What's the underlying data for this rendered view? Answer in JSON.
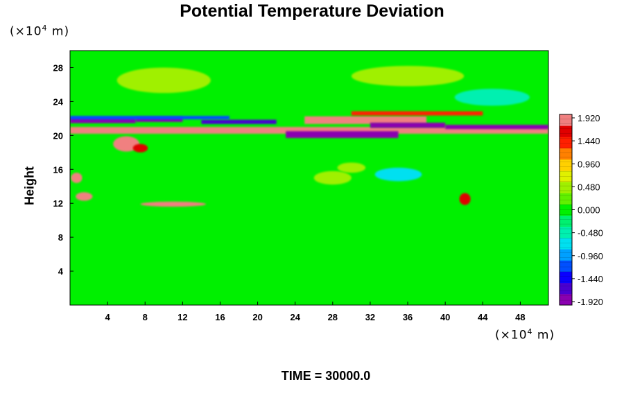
{
  "chart_data": {
    "type": "heatmap",
    "title": "Potential Temperature Deviation",
    "ylabel": "Height",
    "x_unit": "(×10",
    "x_unit_exp": "4",
    "x_unit_tail": " m)",
    "y_unit": "(×10",
    "y_unit_exp": "4",
    "y_unit_tail": " m)",
    "xlim": [
      0,
      51
    ],
    "ylim": [
      0,
      30
    ],
    "x_ticks": [
      4,
      8,
      12,
      16,
      20,
      24,
      28,
      32,
      36,
      40,
      44,
      48
    ],
    "y_ticks": [
      4,
      8,
      12,
      16,
      20,
      24,
      28
    ],
    "colorbar": {
      "min": -1.92,
      "max": 1.92,
      "tick_labels": [
        "1.920",
        "1.440",
        "0.960",
        "0.480",
        "0.000",
        "-0.480",
        "-0.960",
        "-1.440",
        "-1.920"
      ],
      "colors": [
        "#8a00b0",
        "#4a00d0",
        "#0a00ff",
        "#0050ff",
        "#00a0ff",
        "#00e0f0",
        "#00f0b0",
        "#00f070",
        "#00f000",
        "#60f000",
        "#a0f000",
        "#e0f000",
        "#ffd000",
        "#ff8000",
        "#ff2000",
        "#e00000",
        "#f08080"
      ]
    },
    "background_value": 0.0,
    "bands": [
      {
        "y": 20.6,
        "x0": 0,
        "x1": 51,
        "thickness": 0.8,
        "value": 1.92
      },
      {
        "y": 21.8,
        "x0": 0,
        "x1": 7,
        "thickness": 0.7,
        "value": -1.92
      },
      {
        "y": 21.9,
        "x0": 7,
        "x1": 12,
        "thickness": 0.6,
        "value": -1.7
      },
      {
        "y": 21.6,
        "x0": 14,
        "x1": 22,
        "thickness": 0.5,
        "value": -1.6
      },
      {
        "y": 20.1,
        "x0": 23,
        "x1": 35,
        "thickness": 0.8,
        "value": -1.92
      },
      {
        "y": 21.8,
        "x0": 25,
        "x1": 38,
        "thickness": 0.9,
        "value": 1.92
      },
      {
        "y": 21.2,
        "x0": 32,
        "x1": 40,
        "thickness": 0.6,
        "value": -1.92
      },
      {
        "y": 22.6,
        "x0": 30,
        "x1": 44,
        "thickness": 0.5,
        "value": 1.44
      },
      {
        "y": 22.1,
        "x0": 0,
        "x1": 17,
        "thickness": 0.4,
        "value": -1.2
      },
      {
        "y": 21.0,
        "x0": 40,
        "x1": 51,
        "thickness": 0.5,
        "value": -1.92
      }
    ],
    "blobs": [
      {
        "x": 6.0,
        "y": 19.0,
        "rx": 1.4,
        "ry": 0.9,
        "value": 1.92
      },
      {
        "x": 7.5,
        "y": 18.5,
        "rx": 0.8,
        "ry": 0.5,
        "value": 1.6
      },
      {
        "x": 0.7,
        "y": 15.0,
        "rx": 0.6,
        "ry": 0.6,
        "value": 1.7
      },
      {
        "x": 1.5,
        "y": 12.8,
        "rx": 0.9,
        "ry": 0.5,
        "value": 1.92
      },
      {
        "x": 11.0,
        "y": 11.9,
        "rx": 3.5,
        "ry": 0.3,
        "value": 1.7
      },
      {
        "x": 42.1,
        "y": 12.5,
        "rx": 0.6,
        "ry": 0.7,
        "value": 1.5
      },
      {
        "x": 28.0,
        "y": 15.0,
        "rx": 2.0,
        "ry": 0.8,
        "value": 0.5
      },
      {
        "x": 35.0,
        "y": 15.4,
        "rx": 2.5,
        "ry": 0.8,
        "value": -0.7
      },
      {
        "x": 30.0,
        "y": 16.2,
        "rx": 1.5,
        "ry": 0.6,
        "value": 0.4
      },
      {
        "x": 10.0,
        "y": 26.5,
        "rx": 5.0,
        "ry": 1.5,
        "value": 0.4
      },
      {
        "x": 36.0,
        "y": 27.0,
        "rx": 6.0,
        "ry": 1.2,
        "value": 0.45
      },
      {
        "x": 45.0,
        "y": 24.5,
        "rx": 4.0,
        "ry": 1.0,
        "value": -0.4
      }
    ],
    "time_label": "TIME = 30000.0"
  }
}
